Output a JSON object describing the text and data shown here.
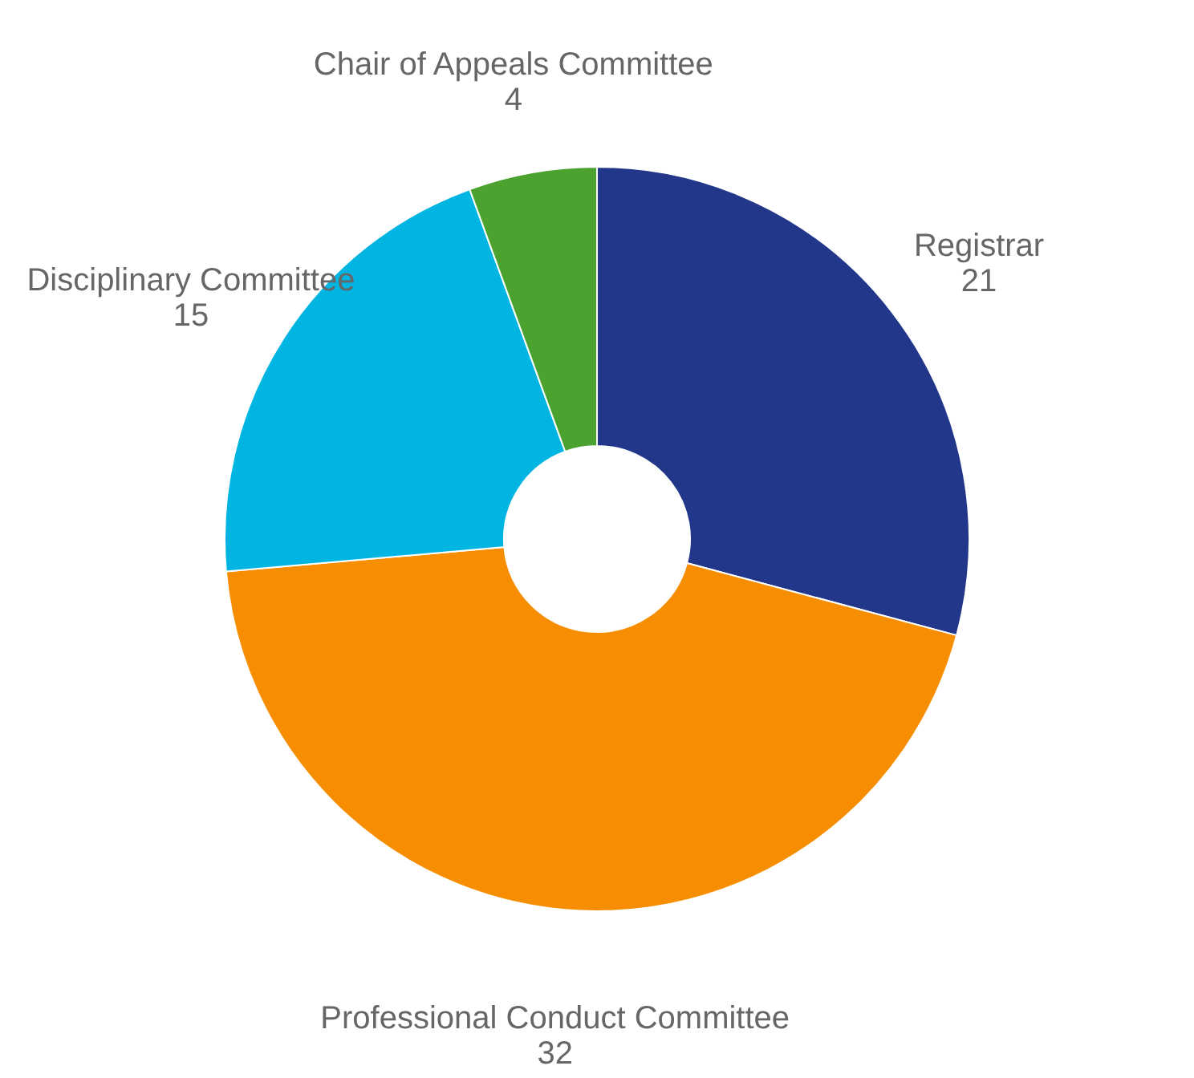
{
  "chart_data": {
    "type": "donut",
    "categories": [
      "Registrar",
      "Professional Conduct Committee",
      "Disciplinary Committee",
      "Chair of Appeals Committee"
    ],
    "values": [
      21,
      32,
      15,
      4
    ],
    "colors": [
      "#22378a",
      "#f78d00",
      "#00b5e2",
      "#4ca22f"
    ],
    "data_labels": true
  }
}
